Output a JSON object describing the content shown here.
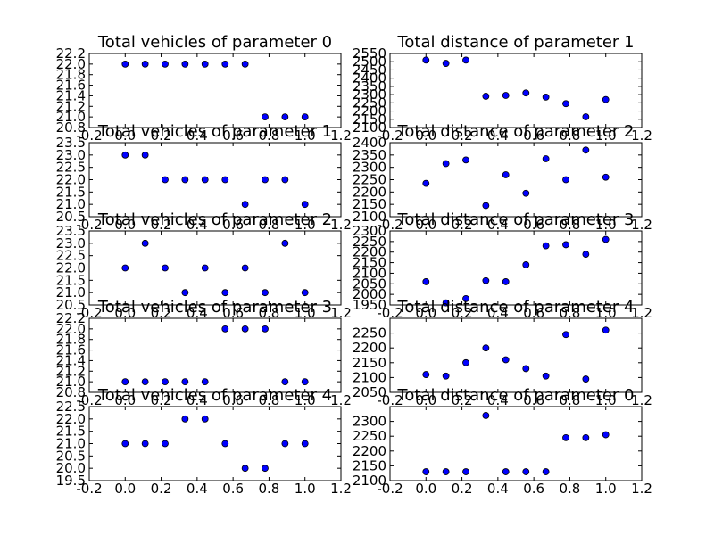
{
  "figure": {
    "background": "#ffffff",
    "marker_color": "#0000ff"
  },
  "chart_data": [
    {
      "type": "scatter",
      "title": "Total vehicles of parameter 0",
      "x": [
        0.0,
        0.111,
        0.222,
        0.333,
        0.444,
        0.556,
        0.667,
        0.778,
        0.889,
        1.0
      ],
      "y": [
        22,
        22,
        22,
        22,
        22,
        22,
        22,
        21,
        21,
        21
      ],
      "xlim": [
        -0.2,
        1.2
      ],
      "ylim": [
        20.8,
        22.2
      ],
      "xticks": [
        "-0.2",
        "0.0",
        "0.2",
        "0.4",
        "0.6",
        "0.8",
        "1.0",
        "1.2"
      ],
      "yticks": [
        "20.8",
        "21.0",
        "21.2",
        "21.4",
        "21.6",
        "21.8",
        "22.0",
        "22.2"
      ]
    },
    {
      "type": "scatter",
      "title": "Total distance of parameter 1",
      "x": [
        0.0,
        0.111,
        0.222,
        0.333,
        0.444,
        0.556,
        0.667,
        0.778,
        0.889,
        1.0
      ],
      "y": [
        2510,
        2490,
        2510,
        2290,
        2295,
        2310,
        2285,
        2245,
        2165,
        2270
      ],
      "xlim": [
        -0.2,
        1.2
      ],
      "ylim": [
        2100,
        2550
      ],
      "xticks": [
        "-0.2",
        "0.0",
        "0.2",
        "0.4",
        "0.6",
        "0.8",
        "1.0",
        "1.2"
      ],
      "yticks": [
        "2100",
        "2150",
        "2200",
        "2250",
        "2300",
        "2350",
        "2400",
        "2450",
        "2500",
        "2550"
      ]
    },
    {
      "type": "scatter",
      "title": "Total vehicles of parameter 1",
      "x": [
        0.0,
        0.111,
        0.222,
        0.333,
        0.444,
        0.556,
        0.667,
        0.778,
        0.889,
        1.0
      ],
      "y": [
        23,
        23,
        22,
        22,
        22,
        22,
        21,
        22,
        22,
        21
      ],
      "xlim": [
        -0.2,
        1.2
      ],
      "ylim": [
        20.5,
        23.5
      ],
      "xticks": [
        "-0.2",
        "0.0",
        "0.2",
        "0.4",
        "0.6",
        "0.8",
        "1.0",
        "1.2"
      ],
      "yticks": [
        "20.5",
        "21.0",
        "21.5",
        "22.0",
        "22.5",
        "23.0",
        "23.5"
      ]
    },
    {
      "type": "scatter",
      "title": "Total distance of parameter 2",
      "x": [
        0.0,
        0.111,
        0.222,
        0.333,
        0.444,
        0.556,
        0.667,
        0.778,
        0.889,
        1.0
      ],
      "y": [
        2235,
        2315,
        2330,
        2145,
        2270,
        2195,
        2335,
        2250,
        2370,
        2260
      ],
      "xlim": [
        -0.2,
        1.2
      ],
      "ylim": [
        2100,
        2400
      ],
      "xticks": [
        "-0.2",
        "0.0",
        "0.2",
        "0.4",
        "0.6",
        "0.8",
        "1.0",
        "1.2"
      ],
      "yticks": [
        "2100",
        "2150",
        "2200",
        "2250",
        "2300",
        "2350",
        "2400"
      ]
    },
    {
      "type": "scatter",
      "title": "Total vehicles of parameter 2",
      "x": [
        0.0,
        0.111,
        0.222,
        0.333,
        0.444,
        0.556,
        0.667,
        0.778,
        0.889,
        1.0
      ],
      "y": [
        22,
        23,
        22,
        21,
        22,
        21,
        22,
        21,
        23,
        21
      ],
      "xlim": [
        -0.2,
        1.2
      ],
      "ylim": [
        20.5,
        23.5
      ],
      "xticks": [
        "-0.2",
        "0.0",
        "0.2",
        "0.4",
        "0.6",
        "0.8",
        "1.0",
        "1.2"
      ],
      "yticks": [
        "20.5",
        "21.0",
        "21.5",
        "22.0",
        "22.5",
        "23.0",
        "23.5"
      ]
    },
    {
      "type": "scatter",
      "title": "Total distance of parameter 3",
      "x": [
        0.0,
        0.111,
        0.222,
        0.333,
        0.444,
        0.556,
        0.667,
        0.778,
        0.889,
        1.0
      ],
      "y": [
        2060,
        1960,
        1980,
        2065,
        2060,
        2140,
        2230,
        2235,
        2190,
        2260
      ],
      "xlim": [
        -0.2,
        1.2
      ],
      "ylim": [
        1950,
        2300
      ],
      "xticks": [
        "-0.2",
        "0.0",
        "0.2",
        "0.4",
        "0.6",
        "0.8",
        "1.0",
        "1.2"
      ],
      "yticks": [
        "1950",
        "2000",
        "2050",
        "2100",
        "2150",
        "2200",
        "2250",
        "2300"
      ]
    },
    {
      "type": "scatter",
      "title": "Total vehicles of parameter 3",
      "x": [
        0.0,
        0.111,
        0.222,
        0.333,
        0.444,
        0.556,
        0.667,
        0.778,
        0.889,
        1.0
      ],
      "y": [
        21,
        21,
        21,
        21,
        21,
        22,
        22,
        22,
        21,
        21
      ],
      "xlim": [
        -0.2,
        1.2
      ],
      "ylim": [
        20.8,
        22.2
      ],
      "xticks": [
        "-0.2",
        "0.0",
        "0.2",
        "0.4",
        "0.6",
        "0.8",
        "1.0",
        "1.2"
      ],
      "yticks": [
        "20.8",
        "21.0",
        "21.2",
        "21.4",
        "21.6",
        "21.8",
        "22.0",
        "22.2"
      ]
    },
    {
      "type": "scatter",
      "title": "Total distance of parameter 4",
      "x": [
        0.0,
        0.111,
        0.222,
        0.333,
        0.444,
        0.556,
        0.667,
        0.778,
        0.889,
        1.0
      ],
      "y": [
        2110,
        2105,
        2150,
        2200,
        2160,
        2130,
        2105,
        2245,
        2095,
        2260
      ],
      "xlim": [
        -0.2,
        1.2
      ],
      "ylim": [
        2050,
        2300
      ],
      "xticks": [
        "-0.2",
        "0.0",
        "0.2",
        "0.4",
        "0.6",
        "0.8",
        "1.0",
        "1.2"
      ],
      "yticks": [
        "2050",
        "2100",
        "2150",
        "2200",
        "2250"
      ]
    },
    {
      "type": "scatter",
      "title": "Total vehicles of parameter 4",
      "x": [
        0.0,
        0.111,
        0.222,
        0.333,
        0.444,
        0.556,
        0.667,
        0.778,
        0.889,
        1.0
      ],
      "y": [
        21,
        21,
        21,
        22,
        22,
        21,
        20,
        20,
        21,
        21
      ],
      "xlim": [
        -0.2,
        1.2
      ],
      "ylim": [
        19.5,
        22.5
      ],
      "xticks": [
        "-0.2",
        "0.0",
        "0.2",
        "0.4",
        "0.6",
        "0.8",
        "1.0",
        "1.2"
      ],
      "yticks": [
        "19.5",
        "20.0",
        "20.5",
        "21.0",
        "21.5",
        "22.0",
        "22.5"
      ]
    },
    {
      "type": "scatter",
      "title": "Total distance of parameter 0",
      "x": [
        0.0,
        0.111,
        0.222,
        0.333,
        0.444,
        0.556,
        0.667,
        0.778,
        0.889,
        1.0
      ],
      "y": [
        2130,
        2130,
        2130,
        2320,
        2130,
        2130,
        2130,
        2245,
        2245,
        2255
      ],
      "xlim": [
        -0.2,
        1.2
      ],
      "ylim": [
        2100,
        2350
      ],
      "xticks": [
        "-0.2",
        "0.0",
        "0.2",
        "0.4",
        "0.6",
        "0.8",
        "1.0",
        "1.2"
      ],
      "yticks": [
        "2100",
        "2150",
        "2200",
        "2250",
        "2300"
      ]
    }
  ]
}
